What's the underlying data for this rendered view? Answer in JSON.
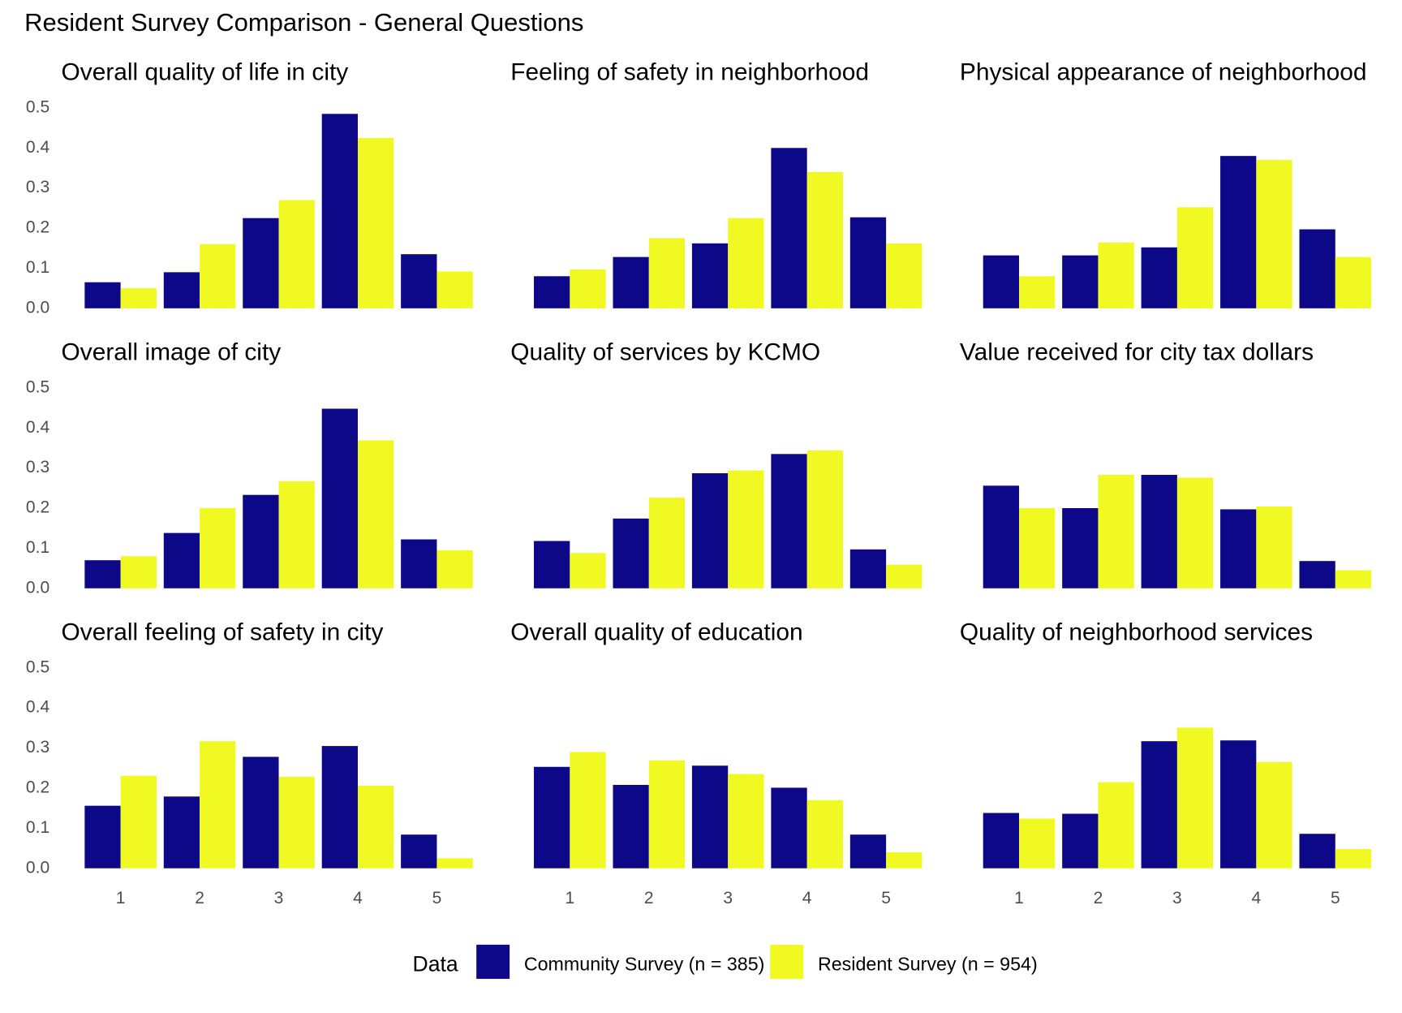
{
  "title": "Resident Survey Comparison - General Questions",
  "legend_title": "Data",
  "chart_data": [
    {
      "type": "bar",
      "title": "Overall quality of life in city",
      "categories": [
        "1",
        "2",
        "3",
        "4",
        "5"
      ],
      "series": [
        {
          "name": "Community Survey (n = 385)",
          "color": "#0d0887",
          "values": [
            0.065,
            0.09,
            0.225,
            0.485,
            0.135
          ]
        },
        {
          "name": "Resident Survey (n = 954)",
          "color": "#f0f921",
          "values": [
            0.05,
            0.16,
            0.27,
            0.425,
            0.092
          ]
        }
      ],
      "ylim": [
        0,
        0.5
      ],
      "yticks": [
        {
          "value": 0,
          "label": "0.0"
        },
        0.1,
        0.2,
        0.3,
        0.4,
        0.5
      ]
    },
    {
      "type": "bar",
      "title": "Feeling of safety in neighborhood",
      "categories": [
        "1",
        "2",
        "3",
        "4",
        "5"
      ],
      "series": [
        {
          "name": "Community Survey (n = 385)",
          "color": "#0d0887",
          "values": [
            0.08,
            0.128,
            0.162,
            0.4,
            0.227
          ]
        },
        {
          "name": "Resident Survey (n = 954)",
          "color": "#f0f921",
          "values": [
            0.097,
            0.175,
            0.225,
            0.34,
            0.162
          ]
        }
      ],
      "ylim": [
        0,
        0.5
      ]
    },
    {
      "type": "bar",
      "title": "Physical appearance of neighborhood",
      "categories": [
        "1",
        "2",
        "3",
        "4",
        "5"
      ],
      "series": [
        {
          "name": "Community Survey (n = 385)",
          "color": "#0d0887",
          "values": [
            0.132,
            0.132,
            0.152,
            0.38,
            0.197
          ]
        },
        {
          "name": "Resident Survey (n = 954)",
          "color": "#f0f921",
          "values": [
            0.08,
            0.164,
            0.252,
            0.37,
            0.128
          ]
        }
      ],
      "ylim": [
        0,
        0.5
      ]
    },
    {
      "type": "bar",
      "title": "Overall image of city",
      "categories": [
        "1",
        "2",
        "3",
        "4",
        "5"
      ],
      "series": [
        {
          "name": "Community Survey (n = 385)",
          "color": "#0d0887",
          "values": [
            0.07,
            0.138,
            0.233,
            0.448,
            0.122
          ]
        },
        {
          "name": "Resident Survey (n = 954)",
          "color": "#f0f921",
          "values": [
            0.08,
            0.2,
            0.267,
            0.369,
            0.095
          ]
        }
      ],
      "ylim": [
        0,
        0.5
      ],
      "yticks": [
        {
          "value": 0,
          "label": "0.0"
        },
        0.1,
        0.2,
        0.3,
        0.4,
        0.5
      ]
    },
    {
      "type": "bar",
      "title": "Quality of services by KCMO",
      "categories": [
        "1",
        "2",
        "3",
        "4",
        "5"
      ],
      "series": [
        {
          "name": "Community Survey (n = 385)",
          "color": "#0d0887",
          "values": [
            0.118,
            0.174,
            0.287,
            0.335,
            0.097
          ]
        },
        {
          "name": "Resident Survey (n = 954)",
          "color": "#f0f921",
          "values": [
            0.088,
            0.226,
            0.294,
            0.344,
            0.059
          ]
        }
      ],
      "ylim": [
        0,
        0.5
      ]
    },
    {
      "type": "bar",
      "title": "Value received for city tax dollars",
      "categories": [
        "1",
        "2",
        "3",
        "4",
        "5"
      ],
      "series": [
        {
          "name": "Community Survey (n = 385)",
          "color": "#0d0887",
          "values": [
            0.256,
            0.2,
            0.283,
            0.197,
            0.068
          ]
        },
        {
          "name": "Resident Survey (n = 954)",
          "color": "#f0f921",
          "values": [
            0.2,
            0.283,
            0.276,
            0.204,
            0.045
          ]
        }
      ],
      "ylim": [
        0,
        0.5
      ]
    },
    {
      "type": "bar",
      "title": "Overall feeling of safety in city",
      "categories": [
        "1",
        "2",
        "3",
        "4",
        "5"
      ],
      "series": [
        {
          "name": "Community Survey (n = 385)",
          "color": "#0d0887",
          "values": [
            0.156,
            0.179,
            0.278,
            0.305,
            0.084
          ]
        },
        {
          "name": "Resident Survey (n = 954)",
          "color": "#f0f921",
          "values": [
            0.231,
            0.317,
            0.228,
            0.206,
            0.025
          ]
        }
      ],
      "ylim": [
        0,
        0.5
      ],
      "yticks": [
        {
          "value": 0,
          "label": "0.0"
        },
        0.1,
        0.2,
        0.3,
        0.4,
        0.5
      ]
    },
    {
      "type": "bar",
      "title": "Overall quality of education",
      "categories": [
        "1",
        "2",
        "3",
        "4",
        "5"
      ],
      "series": [
        {
          "name": "Community Survey (n = 385)",
          "color": "#0d0887",
          "values": [
            0.253,
            0.208,
            0.256,
            0.201,
            0.084
          ]
        },
        {
          "name": "Resident Survey (n = 954)",
          "color": "#f0f921",
          "values": [
            0.29,
            0.269,
            0.235,
            0.17,
            0.04
          ]
        }
      ],
      "ylim": [
        0,
        0.5
      ]
    },
    {
      "type": "bar",
      "title": "Quality of neighborhood services",
      "categories": [
        "1",
        "2",
        "3",
        "4",
        "5"
      ],
      "series": [
        {
          "name": "Community Survey (n = 385)",
          "color": "#0d0887",
          "values": [
            0.138,
            0.136,
            0.317,
            0.319,
            0.086
          ]
        },
        {
          "name": "Resident Survey (n = 954)",
          "color": "#f0f921",
          "values": [
            0.124,
            0.215,
            0.351,
            0.265,
            0.048
          ]
        }
      ],
      "ylim": [
        0,
        0.5
      ]
    }
  ]
}
